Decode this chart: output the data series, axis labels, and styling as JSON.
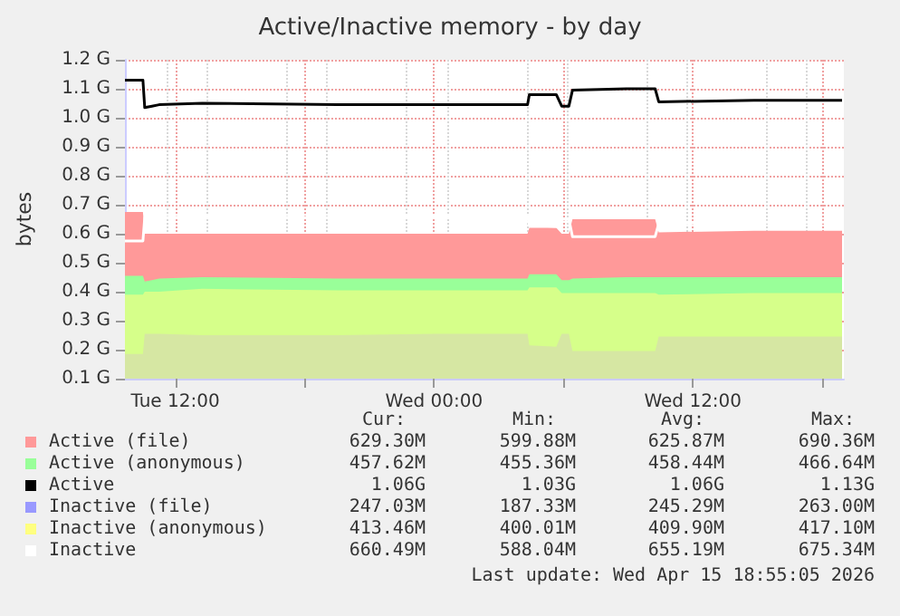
{
  "chart_data": {
    "type": "area",
    "title": "Active/Inactive memory - by day",
    "ylabel": "bytes",
    "grid": true,
    "legend": "bottom",
    "marker": "none",
    "x": [
      "2026-04-14T09:40",
      "2026-04-14T10:30",
      "2026-04-14T10:35",
      "2026-04-14T10:55",
      "2026-04-14T11:15",
      "2026-04-14T13:15",
      "2026-04-14T19:30",
      "2026-04-15T00:05",
      "2026-04-15T04:20",
      "2026-04-15T04:25",
      "2026-04-15T05:40",
      "2026-04-15T05:55",
      "2026-04-15T06:15",
      "2026-04-15T06:25",
      "2026-04-15T08:55",
      "2026-04-15T10:15",
      "2026-04-15T10:25",
      "2026-04-15T14:50",
      "2026-04-15T18:55"
    ],
    "series": [
      {
        "name": "Active (file)",
        "color": "#ff9999",
        "values": [
          0.675,
          0.675,
          0.6,
          0.6,
          0.6,
          0.6,
          0.6,
          0.6,
          0.6,
          0.62,
          0.62,
          0.6,
          0.6,
          0.65,
          0.65,
          0.65,
          0.605,
          0.61,
          0.61
        ]
      },
      {
        "name": "Active (anonymous)",
        "color": "#99ff99",
        "values": [
          0.455,
          0.455,
          0.435,
          0.44,
          0.445,
          0.45,
          0.445,
          0.445,
          0.445,
          0.46,
          0.46,
          0.44,
          0.44,
          0.445,
          0.45,
          0.45,
          0.45,
          0.45,
          0.45
        ]
      },
      {
        "name": "Active",
        "type": "line",
        "color": "#000000",
        "values": [
          1.13,
          1.13,
          1.035,
          1.04,
          1.045,
          1.05,
          1.045,
          1.045,
          1.045,
          1.08,
          1.08,
          1.04,
          1.04,
          1.095,
          1.1,
          1.1,
          1.055,
          1.06,
          1.06
        ]
      },
      {
        "name": "Inactive (file)",
        "color": "#9999ff",
        "values": [
          0.185,
          0.185,
          0.255,
          0.255,
          0.255,
          0.25,
          0.25,
          0.255,
          0.255,
          0.215,
          0.21,
          0.255,
          0.255,
          0.195,
          0.195,
          0.195,
          0.245,
          0.245,
          0.245
        ]
      },
      {
        "name": "Inactive (anonymous)",
        "color": "#ffff80",
        "values": [
          0.39,
          0.39,
          0.4,
          0.4,
          0.4,
          0.41,
          0.405,
          0.405,
          0.405,
          0.415,
          0.415,
          0.395,
          0.395,
          0.395,
          0.395,
          0.395,
          0.39,
          0.395,
          0.395
        ]
      },
      {
        "name": "Inactive",
        "type": "line",
        "color": "#ffffff",
        "values": [
          0.575,
          0.575,
          0.655,
          0.655,
          0.655,
          0.66,
          0.655,
          0.66,
          0.66,
          0.63,
          0.625,
          0.65,
          0.65,
          0.59,
          0.59,
          0.59,
          0.635,
          0.64,
          0.64
        ]
      }
    ],
    "xlim": [
      "2026-04-14T09:40",
      "2026-04-15T19:00"
    ],
    "xticks": [
      {
        "value": "2026-04-14T12:00",
        "label": "Tue 12:00"
      },
      {
        "value": "2026-04-14T18:00",
        "label": null
      },
      {
        "value": "2026-04-15T00:00",
        "label": "Wed 00:00"
      },
      {
        "value": "2026-04-15T06:00",
        "label": null
      },
      {
        "value": "2026-04-15T12:00",
        "label": "Wed 12:00"
      },
      {
        "value": "2026-04-15T18:00",
        "label": null
      }
    ],
    "ylim": [
      0.1,
      1.2
    ],
    "yticks": [
      {
        "value": 0.1,
        "label": "0.1 G"
      },
      {
        "value": 0.2,
        "label": "0.2 G"
      },
      {
        "value": 0.3,
        "label": "0.3 G"
      },
      {
        "value": 0.4,
        "label": "0.4 G"
      },
      {
        "value": 0.5,
        "label": "0.5 G"
      },
      {
        "value": 0.6,
        "label": "0.6 G"
      },
      {
        "value": 0.7,
        "label": "0.7 G"
      },
      {
        "value": 0.8,
        "label": "0.8 G"
      },
      {
        "value": 0.9,
        "label": "0.9 G"
      },
      {
        "value": 1.0,
        "label": "1.0 G"
      },
      {
        "value": 1.1,
        "label": "1.1 G"
      },
      {
        "value": 1.2,
        "label": "1.2 G"
      }
    ],
    "annotations": [
      "Cur:",
      "Min:",
      "Avg:",
      "Max:",
      "629.30M",
      "599.88M",
      "625.87M",
      "690.36M",
      "457.62M",
      "455.36M",
      "458.44M",
      "466.64M",
      "1.06G",
      "1.03G",
      "1.06G",
      "1.13G",
      "247.03M",
      "187.33M",
      "245.29M",
      "263.00M",
      "413.46M",
      "400.01M",
      "409.90M",
      "417.10M",
      "660.49M",
      "588.04M",
      "655.19M",
      "675.34M",
      "Last update: Wed Apr 15 18:55:05 2026"
    ]
  }
}
